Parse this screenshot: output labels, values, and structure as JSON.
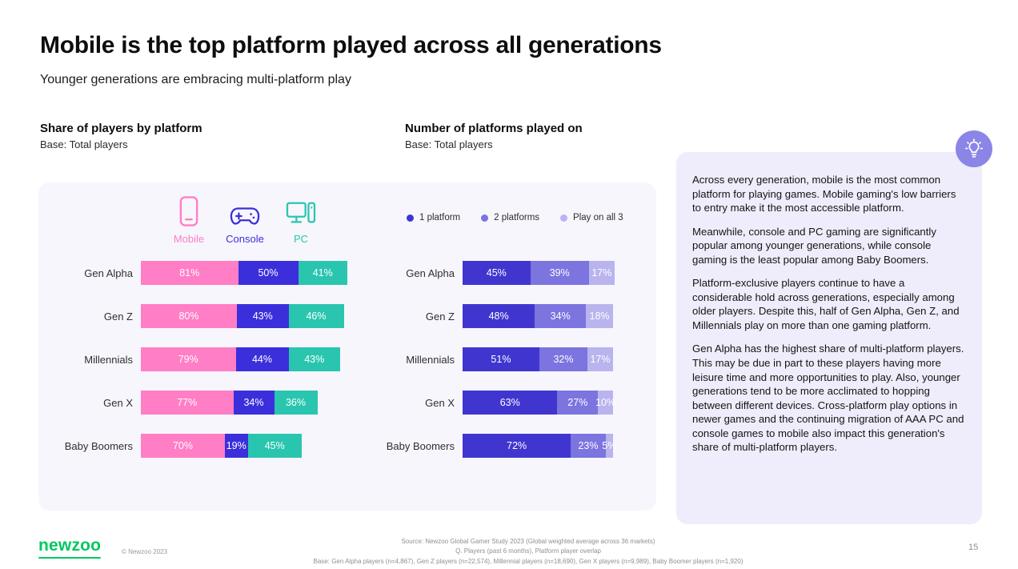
{
  "slide": {
    "title": "Mobile is the top platform played across all generations",
    "subtitle": "Younger generations are embracing multi-platform play"
  },
  "chart_data": [
    {
      "type": "bar",
      "orientation": "horizontal",
      "layout": "adjacent-segments",
      "title": "Share of players by platform",
      "subtitle": "Base: Total players",
      "value_format": "percent",
      "categories": [
        "Gen Alpha",
        "Gen Z",
        "Millennials",
        "Gen X",
        "Baby Boomers"
      ],
      "series": [
        {
          "name": "Mobile",
          "color": "#FF7EC5",
          "values": [
            81,
            80,
            79,
            77,
            70
          ]
        },
        {
          "name": "Console",
          "color": "#3B2FDB",
          "values": [
            50,
            43,
            44,
            34,
            19
          ]
        },
        {
          "name": "PC",
          "color": "#2AC5AF",
          "values": [
            41,
            46,
            43,
            36,
            45
          ]
        }
      ],
      "legend_position": "top",
      "grid": false
    },
    {
      "type": "bar",
      "orientation": "horizontal",
      "layout": "stacked",
      "title": "Number of platforms played on",
      "subtitle": "Base: Total players",
      "value_format": "percent",
      "categories": [
        "Gen Alpha",
        "Gen Z",
        "Millennials",
        "Gen X",
        "Baby Boomers"
      ],
      "series": [
        {
          "name": "1 platform",
          "color": "#4036CF",
          "values": [
            45,
            48,
            51,
            63,
            72
          ]
        },
        {
          "name": "2 platforms",
          "color": "#7C74DF",
          "values": [
            39,
            34,
            32,
            27,
            23
          ]
        },
        {
          "name": "Play on all 3",
          "color": "#B9B4EE",
          "values": [
            17,
            18,
            17,
            10,
            5
          ]
        }
      ],
      "legend_position": "top",
      "grid": false
    }
  ],
  "insights": {
    "paragraphs": [
      "Across every generation, mobile is the most common platform for playing games. Mobile gaming's low barriers to entry make it the most accessible platform.",
      "Meanwhile, console and PC gaming are significantly popular among younger generations, while console gaming is the least popular among Baby Boomers.",
      "Platform-exclusive players continue to have a considerable hold across generations, especially among older players. Despite this, half of Gen Alpha, Gen Z, and Millennials play on more than one gaming platform.",
      "Gen Alpha has the highest share of multi-platform players. This may be due in part to these players having more leisure time and more opportunities to play. Also, younger generations tend to be more acclimated to hopping between different devices. Cross-platform play options in newer games and the continuing migration of AAA PC and console games to mobile also impact this generation's share of multi-platform players."
    ]
  },
  "footer": {
    "logo_text": "newzoo",
    "logo_color": "#00C860",
    "copyright": "© Newzoo 2023",
    "source_lines": [
      "Source: Newzoo Global Gamer Study 2023 (Global weighted average across 36 markets)",
      "Q. Players (past 6 months), Platform player overlap",
      "Base: Gen Alpha players (n=4,867), Gen Z players (n=22,574), Millennial players (n=18,690), Gen X players (n=9,989), Baby Boomer players (n=1,920)"
    ],
    "page_number": "15"
  },
  "colors": {
    "panel_background": "#F7F6FD",
    "insights_background": "#EFEDFB",
    "highlight_circle": "#8B85E8"
  }
}
